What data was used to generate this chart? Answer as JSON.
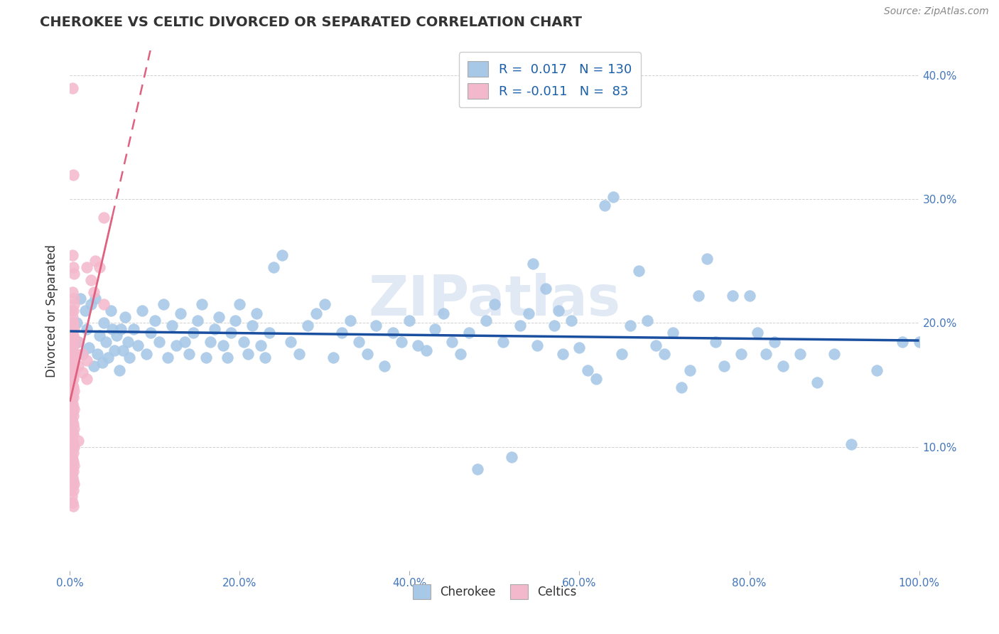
{
  "title": "CHEROKEE VS CELTIC DIVORCED OR SEPARATED CORRELATION CHART",
  "source_text": "Source: ZipAtlas.com",
  "ylabel": "Divorced or Separated",
  "xlim": [
    0.0,
    1.0
  ],
  "ylim": [
    0.0,
    0.42
  ],
  "xticks": [
    0.0,
    0.2,
    0.4,
    0.6,
    0.8,
    1.0
  ],
  "xticklabels": [
    "0.0%",
    "20.0%",
    "40.0%",
    "60.0%",
    "80.0%",
    "100.0%"
  ],
  "ytick_vals": [
    0.0,
    0.1,
    0.2,
    0.3,
    0.4
  ],
  "ytick_labels_right": [
    "",
    "10.0%",
    "20.0%",
    "30.0%",
    "40.0%"
  ],
  "legend_R_blue": "0.017",
  "legend_N_blue": "130",
  "legend_R_pink": "-0.011",
  "legend_N_pink": "83",
  "watermark": "ZIPatlas",
  "blue_color": "#a8c8e8",
  "pink_color": "#f4b8cc",
  "blue_line_color": "#1a4fa0",
  "pink_line_color": "#e06080",
  "blue_line_y0": 0.178,
  "blue_line_y1": 0.183,
  "pink_line_y0": 0.17,
  "pink_line_y1": 0.145,
  "blue_scatter": [
    [
      0.008,
      0.2
    ],
    [
      0.01,
      0.185
    ],
    [
      0.012,
      0.22
    ],
    [
      0.015,
      0.175
    ],
    [
      0.018,
      0.21
    ],
    [
      0.02,
      0.195
    ],
    [
      0.022,
      0.18
    ],
    [
      0.025,
      0.215
    ],
    [
      0.028,
      0.165
    ],
    [
      0.03,
      0.22
    ],
    [
      0.032,
      0.175
    ],
    [
      0.035,
      0.19
    ],
    [
      0.038,
      0.168
    ],
    [
      0.04,
      0.2
    ],
    [
      0.042,
      0.185
    ],
    [
      0.045,
      0.172
    ],
    [
      0.048,
      0.21
    ],
    [
      0.05,
      0.195
    ],
    [
      0.052,
      0.178
    ],
    [
      0.055,
      0.19
    ],
    [
      0.058,
      0.162
    ],
    [
      0.06,
      0.195
    ],
    [
      0.062,
      0.178
    ],
    [
      0.065,
      0.205
    ],
    [
      0.068,
      0.185
    ],
    [
      0.07,
      0.172
    ],
    [
      0.075,
      0.195
    ],
    [
      0.08,
      0.182
    ],
    [
      0.085,
      0.21
    ],
    [
      0.09,
      0.175
    ],
    [
      0.095,
      0.192
    ],
    [
      0.1,
      0.202
    ],
    [
      0.105,
      0.185
    ],
    [
      0.11,
      0.215
    ],
    [
      0.115,
      0.172
    ],
    [
      0.12,
      0.198
    ],
    [
      0.125,
      0.182
    ],
    [
      0.13,
      0.208
    ],
    [
      0.135,
      0.185
    ],
    [
      0.14,
      0.175
    ],
    [
      0.145,
      0.192
    ],
    [
      0.15,
      0.202
    ],
    [
      0.155,
      0.215
    ],
    [
      0.16,
      0.172
    ],
    [
      0.165,
      0.185
    ],
    [
      0.17,
      0.195
    ],
    [
      0.175,
      0.205
    ],
    [
      0.18,
      0.182
    ],
    [
      0.185,
      0.172
    ],
    [
      0.19,
      0.192
    ],
    [
      0.195,
      0.202
    ],
    [
      0.2,
      0.215
    ],
    [
      0.205,
      0.185
    ],
    [
      0.21,
      0.175
    ],
    [
      0.215,
      0.198
    ],
    [
      0.22,
      0.208
    ],
    [
      0.225,
      0.182
    ],
    [
      0.23,
      0.172
    ],
    [
      0.235,
      0.192
    ],
    [
      0.24,
      0.245
    ],
    [
      0.25,
      0.255
    ],
    [
      0.26,
      0.185
    ],
    [
      0.27,
      0.175
    ],
    [
      0.28,
      0.198
    ],
    [
      0.29,
      0.208
    ],
    [
      0.3,
      0.215
    ],
    [
      0.31,
      0.172
    ],
    [
      0.32,
      0.192
    ],
    [
      0.33,
      0.202
    ],
    [
      0.34,
      0.185
    ],
    [
      0.35,
      0.175
    ],
    [
      0.36,
      0.198
    ],
    [
      0.37,
      0.165
    ],
    [
      0.38,
      0.192
    ],
    [
      0.39,
      0.185
    ],
    [
      0.4,
      0.202
    ],
    [
      0.41,
      0.182
    ],
    [
      0.42,
      0.178
    ],
    [
      0.43,
      0.195
    ],
    [
      0.44,
      0.208
    ],
    [
      0.45,
      0.185
    ],
    [
      0.46,
      0.175
    ],
    [
      0.47,
      0.192
    ],
    [
      0.48,
      0.082
    ],
    [
      0.49,
      0.202
    ],
    [
      0.5,
      0.215
    ],
    [
      0.51,
      0.185
    ],
    [
      0.52,
      0.092
    ],
    [
      0.53,
      0.198
    ],
    [
      0.54,
      0.208
    ],
    [
      0.545,
      0.248
    ],
    [
      0.55,
      0.182
    ],
    [
      0.56,
      0.228
    ],
    [
      0.57,
      0.198
    ],
    [
      0.575,
      0.21
    ],
    [
      0.58,
      0.175
    ],
    [
      0.59,
      0.202
    ],
    [
      0.6,
      0.18
    ],
    [
      0.61,
      0.162
    ],
    [
      0.62,
      0.155
    ],
    [
      0.63,
      0.295
    ],
    [
      0.64,
      0.302
    ],
    [
      0.65,
      0.175
    ],
    [
      0.66,
      0.198
    ],
    [
      0.67,
      0.242
    ],
    [
      0.68,
      0.202
    ],
    [
      0.69,
      0.182
    ],
    [
      0.7,
      0.175
    ],
    [
      0.71,
      0.192
    ],
    [
      0.72,
      0.148
    ],
    [
      0.73,
      0.162
    ],
    [
      0.74,
      0.222
    ],
    [
      0.75,
      0.252
    ],
    [
      0.76,
      0.185
    ],
    [
      0.77,
      0.165
    ],
    [
      0.78,
      0.222
    ],
    [
      0.79,
      0.175
    ],
    [
      0.8,
      0.222
    ],
    [
      0.81,
      0.192
    ],
    [
      0.82,
      0.175
    ],
    [
      0.83,
      0.185
    ],
    [
      0.84,
      0.165
    ],
    [
      0.86,
      0.175
    ],
    [
      0.88,
      0.152
    ],
    [
      0.9,
      0.175
    ],
    [
      0.92,
      0.102
    ],
    [
      0.95,
      0.162
    ],
    [
      0.98,
      0.185
    ],
    [
      1.0,
      0.185
    ]
  ],
  "pink_scatter": [
    [
      0.003,
      0.39
    ],
    [
      0.004,
      0.32
    ],
    [
      0.005,
      0.24
    ],
    [
      0.003,
      0.255
    ],
    [
      0.004,
      0.245
    ],
    [
      0.005,
      0.22
    ],
    [
      0.002,
      0.21
    ],
    [
      0.003,
      0.225
    ],
    [
      0.004,
      0.2
    ],
    [
      0.005,
      0.215
    ],
    [
      0.003,
      0.205
    ],
    [
      0.004,
      0.21
    ],
    [
      0.002,
      0.195
    ],
    [
      0.003,
      0.2
    ],
    [
      0.004,
      0.19
    ],
    [
      0.005,
      0.195
    ],
    [
      0.003,
      0.185
    ],
    [
      0.004,
      0.188
    ],
    [
      0.002,
      0.182
    ],
    [
      0.003,
      0.18
    ],
    [
      0.004,
      0.178
    ],
    [
      0.005,
      0.175
    ],
    [
      0.003,
      0.172
    ],
    [
      0.004,
      0.17
    ],
    [
      0.002,
      0.168
    ],
    [
      0.003,
      0.165
    ],
    [
      0.004,
      0.162
    ],
    [
      0.005,
      0.16
    ],
    [
      0.003,
      0.158
    ],
    [
      0.004,
      0.155
    ],
    [
      0.002,
      0.152
    ],
    [
      0.003,
      0.15
    ],
    [
      0.004,
      0.148
    ],
    [
      0.005,
      0.145
    ],
    [
      0.003,
      0.142
    ],
    [
      0.004,
      0.14
    ],
    [
      0.002,
      0.138
    ],
    [
      0.003,
      0.135
    ],
    [
      0.004,
      0.132
    ],
    [
      0.005,
      0.13
    ],
    [
      0.003,
      0.128
    ],
    [
      0.004,
      0.125
    ],
    [
      0.002,
      0.122
    ],
    [
      0.003,
      0.12
    ],
    [
      0.004,
      0.118
    ],
    [
      0.005,
      0.115
    ],
    [
      0.003,
      0.112
    ],
    [
      0.004,
      0.11
    ],
    [
      0.002,
      0.108
    ],
    [
      0.003,
      0.105
    ],
    [
      0.004,
      0.102
    ],
    [
      0.005,
      0.1
    ],
    [
      0.003,
      0.098
    ],
    [
      0.004,
      0.095
    ],
    [
      0.002,
      0.092
    ],
    [
      0.003,
      0.09
    ],
    [
      0.004,
      0.088
    ],
    [
      0.005,
      0.085
    ],
    [
      0.003,
      0.082
    ],
    [
      0.004,
      0.08
    ],
    [
      0.002,
      0.078
    ],
    [
      0.003,
      0.075
    ],
    [
      0.004,
      0.072
    ],
    [
      0.005,
      0.07
    ],
    [
      0.003,
      0.068
    ],
    [
      0.004,
      0.065
    ],
    [
      0.002,
      0.06
    ],
    [
      0.003,
      0.055
    ],
    [
      0.004,
      0.052
    ],
    [
      0.03,
      0.25
    ],
    [
      0.028,
      0.225
    ],
    [
      0.04,
      0.215
    ],
    [
      0.025,
      0.235
    ],
    [
      0.035,
      0.245
    ],
    [
      0.02,
      0.245
    ],
    [
      0.01,
      0.185
    ],
    [
      0.015,
      0.175
    ],
    [
      0.02,
      0.17
    ],
    [
      0.01,
      0.165
    ],
    [
      0.015,
      0.16
    ],
    [
      0.02,
      0.155
    ],
    [
      0.01,
      0.105
    ],
    [
      0.04,
      0.285
    ]
  ]
}
